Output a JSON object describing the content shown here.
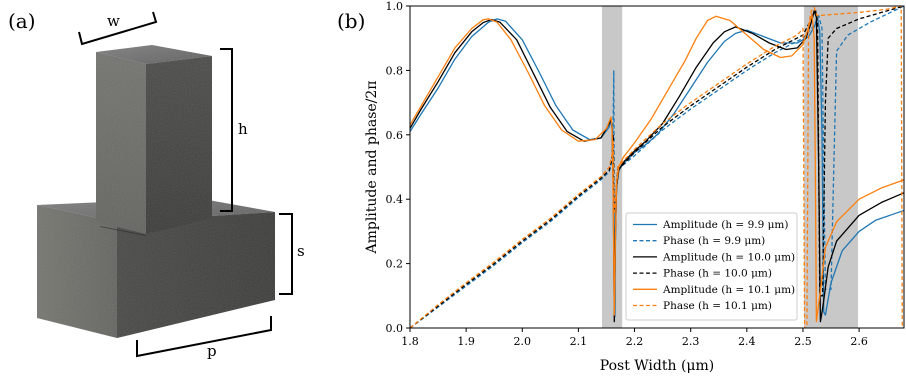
{
  "panel_a": {
    "label": "(a)",
    "dim_labels": {
      "w": "w",
      "h": "h",
      "s": "s",
      "p": "p"
    }
  },
  "panel_b": {
    "label": "(b)"
  },
  "chart_data": {
    "type": "line",
    "title": "",
    "xlabel": "Post Width (μm)",
    "ylabel": "Amplitude and phase/2π",
    "xlim": [
      1.8,
      2.68
    ],
    "ylim": [
      0.0,
      1.0
    ],
    "xticks": [
      1.8,
      1.9,
      2.0,
      2.1,
      2.2,
      2.3,
      2.4,
      2.5,
      2.6
    ],
    "xtick_labels": [
      "1.8",
      "1.9",
      "2.0",
      "2.1",
      "2.2",
      "2.3",
      "2.4",
      "2.5",
      "2.6"
    ],
    "yticks": [
      0.0,
      0.2,
      0.4,
      0.6,
      0.8,
      1.0
    ],
    "ytick_labels": [
      "0.0",
      "0.2",
      "0.4",
      "0.6",
      "0.8",
      "1.0"
    ],
    "grid": false,
    "legend_position": "lower-right",
    "shaded_regions": [
      {
        "x0": 2.142,
        "x1": 2.178,
        "color": "#c8c8c8"
      },
      {
        "x0": 2.502,
        "x1": 2.598,
        "color": "#c8c8c8"
      }
    ],
    "series": [
      {
        "name": "Amplitude (h = 9.9 μm)",
        "color": "#1f77b4",
        "style": "solid",
        "points": [
          [
            1.8,
            0.61
          ],
          [
            1.82,
            0.665
          ],
          [
            1.85,
            0.745
          ],
          [
            1.88,
            0.835
          ],
          [
            1.91,
            0.905
          ],
          [
            1.94,
            0.95
          ],
          [
            1.955,
            0.96
          ],
          [
            1.97,
            0.953
          ],
          [
            2.0,
            0.895
          ],
          [
            2.03,
            0.795
          ],
          [
            2.06,
            0.69
          ],
          [
            2.09,
            0.615
          ],
          [
            2.12,
            0.585
          ],
          [
            2.14,
            0.59
          ],
          [
            2.155,
            0.625
          ],
          [
            2.158,
            0.645
          ],
          [
            2.16,
            0.62
          ],
          [
            2.162,
            0.5
          ],
          [
            2.164,
            0.3
          ],
          [
            2.165,
            0.035
          ],
          [
            2.166,
            0.3
          ],
          [
            2.168,
            0.44
          ],
          [
            2.172,
            0.49
          ],
          [
            2.18,
            0.51
          ],
          [
            2.2,
            0.545
          ],
          [
            2.22,
            0.57
          ],
          [
            2.24,
            0.6
          ],
          [
            2.27,
            0.665
          ],
          [
            2.3,
            0.745
          ],
          [
            2.33,
            0.825
          ],
          [
            2.36,
            0.89
          ],
          [
            2.38,
            0.915
          ],
          [
            2.4,
            0.925
          ],
          [
            2.43,
            0.905
          ],
          [
            2.46,
            0.885
          ],
          [
            2.49,
            0.885
          ],
          [
            2.51,
            0.905
          ],
          [
            2.52,
            0.935
          ],
          [
            2.526,
            0.965
          ],
          [
            2.53,
            0.92
          ],
          [
            2.534,
            0.6
          ],
          [
            2.537,
            0.05
          ],
          [
            2.54,
            0.04
          ],
          [
            2.55,
            0.14
          ],
          [
            2.57,
            0.24
          ],
          [
            2.6,
            0.3
          ],
          [
            2.63,
            0.335
          ],
          [
            2.68,
            0.365
          ]
        ]
      },
      {
        "name": "Phase (h = 9.9 μm)",
        "color": "#1f77b4",
        "style": "dashed",
        "points": [
          [
            1.8,
            0.0
          ],
          [
            1.85,
            0.065
          ],
          [
            1.9,
            0.13
          ],
          [
            1.95,
            0.195
          ],
          [
            2.0,
            0.265
          ],
          [
            2.05,
            0.33
          ],
          [
            2.1,
            0.405
          ],
          [
            2.14,
            0.46
          ],
          [
            2.155,
            0.485
          ],
          [
            2.16,
            0.52
          ],
          [
            2.162,
            0.65
          ],
          [
            2.163,
            0.8
          ],
          [
            2.164,
            0.4
          ],
          [
            2.166,
            0.36
          ],
          [
            2.168,
            0.47
          ],
          [
            2.172,
            0.495
          ],
          [
            2.2,
            0.535
          ],
          [
            2.25,
            0.615
          ],
          [
            2.3,
            0.68
          ],
          [
            2.35,
            0.74
          ],
          [
            2.4,
            0.8
          ],
          [
            2.45,
            0.855
          ],
          [
            2.5,
            0.9
          ],
          [
            2.52,
            0.94
          ],
          [
            2.528,
            0.97
          ],
          [
            2.534,
            0.93
          ],
          [
            2.537,
            0.5
          ],
          [
            2.54,
            0.12
          ],
          [
            2.55,
            0.12
          ],
          [
            2.555,
            0.5
          ],
          [
            2.56,
            0.86
          ],
          [
            2.58,
            0.91
          ],
          [
            2.62,
            0.95
          ],
          [
            2.68,
            1.0
          ]
        ]
      },
      {
        "name": "Amplitude (h = 10.0 μm)",
        "color": "#000000",
        "style": "solid",
        "points": [
          [
            1.8,
            0.62
          ],
          [
            1.82,
            0.68
          ],
          [
            1.85,
            0.765
          ],
          [
            1.88,
            0.855
          ],
          [
            1.91,
            0.92
          ],
          [
            1.93,
            0.948
          ],
          [
            1.945,
            0.958
          ],
          [
            1.96,
            0.95
          ],
          [
            1.99,
            0.895
          ],
          [
            2.02,
            0.79
          ],
          [
            2.05,
            0.685
          ],
          [
            2.08,
            0.61
          ],
          [
            2.11,
            0.58
          ],
          [
            2.14,
            0.59
          ],
          [
            2.155,
            0.635
          ],
          [
            2.158,
            0.65
          ],
          [
            2.16,
            0.62
          ],
          [
            2.162,
            0.45
          ],
          [
            2.164,
            0.02
          ],
          [
            2.166,
            0.3
          ],
          [
            2.168,
            0.44
          ],
          [
            2.172,
            0.49
          ],
          [
            2.18,
            0.515
          ],
          [
            2.2,
            0.55
          ],
          [
            2.22,
            0.58
          ],
          [
            2.25,
            0.635
          ],
          [
            2.28,
            0.72
          ],
          [
            2.31,
            0.81
          ],
          [
            2.34,
            0.885
          ],
          [
            2.36,
            0.92
          ],
          [
            2.38,
            0.935
          ],
          [
            2.41,
            0.915
          ],
          [
            2.44,
            0.885
          ],
          [
            2.47,
            0.865
          ],
          [
            2.49,
            0.87
          ],
          [
            2.505,
            0.9
          ],
          [
            2.515,
            0.95
          ],
          [
            2.52,
            0.985
          ],
          [
            2.524,
            0.965
          ],
          [
            2.528,
            0.5
          ],
          [
            2.531,
            0.02
          ],
          [
            2.535,
            0.06
          ],
          [
            2.545,
            0.19
          ],
          [
            2.56,
            0.27
          ],
          [
            2.6,
            0.35
          ],
          [
            2.64,
            0.39
          ],
          [
            2.68,
            0.42
          ]
        ]
      },
      {
        "name": "Phase (h = 10.0 μm)",
        "color": "#000000",
        "style": "dashed",
        "points": [
          [
            1.8,
            0.0
          ],
          [
            1.85,
            0.068
          ],
          [
            1.9,
            0.135
          ],
          [
            1.95,
            0.2
          ],
          [
            2.0,
            0.27
          ],
          [
            2.05,
            0.335
          ],
          [
            2.1,
            0.41
          ],
          [
            2.14,
            0.465
          ],
          [
            2.155,
            0.49
          ],
          [
            2.16,
            0.53
          ],
          [
            2.162,
            0.6
          ],
          [
            2.164,
            0.37
          ],
          [
            2.166,
            0.39
          ],
          [
            2.17,
            0.49
          ],
          [
            2.2,
            0.545
          ],
          [
            2.25,
            0.625
          ],
          [
            2.3,
            0.69
          ],
          [
            2.35,
            0.75
          ],
          [
            2.4,
            0.81
          ],
          [
            2.45,
            0.865
          ],
          [
            2.5,
            0.91
          ],
          [
            2.515,
            0.96
          ],
          [
            2.522,
            0.99
          ],
          [
            2.526,
            0.95
          ],
          [
            2.53,
            0.1
          ],
          [
            2.535,
            0.1
          ],
          [
            2.54,
            0.7
          ],
          [
            2.545,
            0.9
          ],
          [
            2.56,
            0.93
          ],
          [
            2.6,
            0.96
          ],
          [
            2.68,
            1.0
          ]
        ]
      },
      {
        "name": "Amplitude (h = 10.1 μm)",
        "color": "#ff7f0e",
        "style": "solid",
        "points": [
          [
            1.8,
            0.63
          ],
          [
            1.82,
            0.69
          ],
          [
            1.85,
            0.78
          ],
          [
            1.88,
            0.87
          ],
          [
            1.91,
            0.93
          ],
          [
            1.93,
            0.957
          ],
          [
            1.94,
            0.96
          ],
          [
            1.955,
            0.95
          ],
          [
            1.98,
            0.895
          ],
          [
            2.01,
            0.795
          ],
          [
            2.04,
            0.69
          ],
          [
            2.07,
            0.615
          ],
          [
            2.1,
            0.58
          ],
          [
            2.13,
            0.585
          ],
          [
            2.15,
            0.62
          ],
          [
            2.158,
            0.655
          ],
          [
            2.16,
            0.62
          ],
          [
            2.162,
            0.4
          ],
          [
            2.164,
            0.04
          ],
          [
            2.166,
            0.3
          ],
          [
            2.168,
            0.45
          ],
          [
            2.172,
            0.5
          ],
          [
            2.18,
            0.53
          ],
          [
            2.2,
            0.575
          ],
          [
            2.23,
            0.65
          ],
          [
            2.26,
            0.74
          ],
          [
            2.29,
            0.83
          ],
          [
            2.31,
            0.9
          ],
          [
            2.33,
            0.955
          ],
          [
            2.345,
            0.968
          ],
          [
            2.37,
            0.955
          ],
          [
            2.4,
            0.91
          ],
          [
            2.43,
            0.865
          ],
          [
            2.46,
            0.84
          ],
          [
            2.48,
            0.845
          ],
          [
            2.5,
            0.88
          ],
          [
            2.51,
            0.935
          ],
          [
            2.516,
            0.975
          ],
          [
            2.52,
            0.9
          ],
          [
            2.522,
            0.5
          ],
          [
            2.524,
            0.02
          ],
          [
            2.53,
            0.1
          ],
          [
            2.54,
            0.25
          ],
          [
            2.56,
            0.33
          ],
          [
            2.6,
            0.4
          ],
          [
            2.64,
            0.435
          ],
          [
            2.68,
            0.46
          ]
        ]
      },
      {
        "name": "Phase (h = 10.1 μm)",
        "color": "#ff7f0e",
        "style": "dashed",
        "points": [
          [
            1.8,
            0.0
          ],
          [
            1.85,
            0.072
          ],
          [
            1.9,
            0.14
          ],
          [
            1.95,
            0.205
          ],
          [
            2.0,
            0.275
          ],
          [
            2.05,
            0.34
          ],
          [
            2.1,
            0.415
          ],
          [
            2.14,
            0.47
          ],
          [
            2.155,
            0.5
          ],
          [
            2.16,
            0.54
          ],
          [
            2.162,
            0.58
          ],
          [
            2.164,
            0.36
          ],
          [
            2.166,
            0.4
          ],
          [
            2.17,
            0.5
          ],
          [
            2.2,
            0.555
          ],
          [
            2.25,
            0.635
          ],
          [
            2.3,
            0.7
          ],
          [
            2.35,
            0.76
          ],
          [
            2.4,
            0.82
          ],
          [
            2.45,
            0.875
          ],
          [
            2.49,
            0.91
          ],
          [
            2.5,
            0.93
          ],
          [
            2.503,
            0.0
          ],
          [
            2.507,
            0.0
          ],
          [
            2.51,
            0.94
          ],
          [
            2.515,
            0.985
          ],
          [
            2.52,
            0.995
          ],
          [
            2.525,
            0.97
          ],
          [
            2.6,
            0.98
          ],
          [
            2.65,
            0.99
          ],
          [
            2.675,
            1.0
          ],
          [
            2.677,
            0.0
          ]
        ]
      }
    ]
  }
}
